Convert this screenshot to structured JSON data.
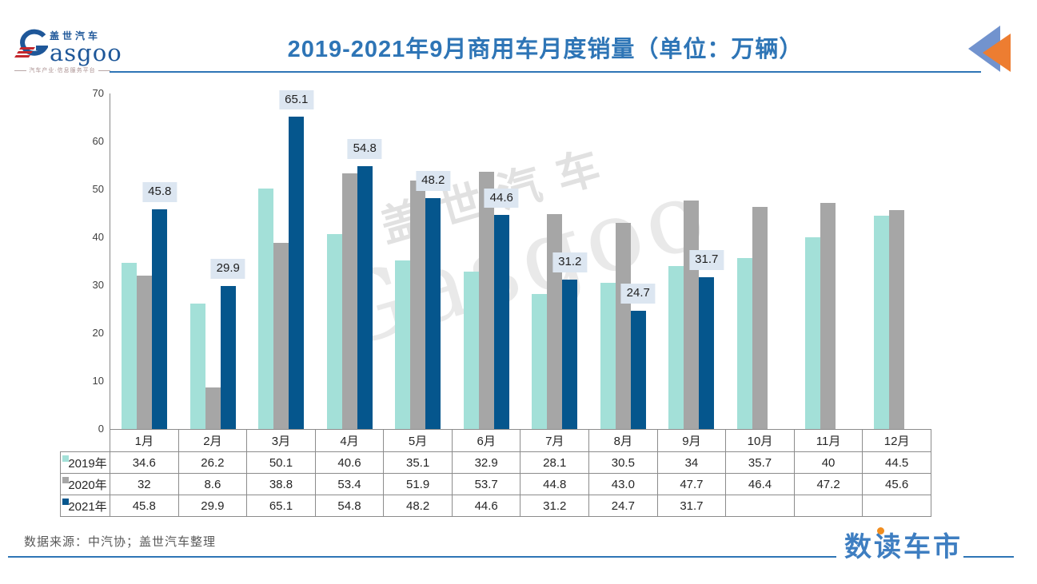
{
  "header": {
    "logo": {
      "brand_cn": "盖世汽车",
      "brand_en": "asgoo",
      "tagline": "汽车产业·信息服务平台"
    },
    "title": "2019-2021年9月商用车月度销量（单位：万辆）"
  },
  "chart_data": {
    "type": "bar",
    "title": "2019-2021年9月商用车月度销量（单位：万辆）",
    "unit": "万辆",
    "categories": [
      "1月",
      "2月",
      "3月",
      "4月",
      "5月",
      "6月",
      "7月",
      "8月",
      "9月",
      "10月",
      "11月",
      "12月"
    ],
    "series": [
      {
        "name": "2019年",
        "color": "#A3E0D8",
        "values": [
          34.6,
          26.2,
          50.1,
          40.6,
          35.1,
          32.9,
          28.1,
          30.5,
          34,
          35.7,
          40,
          44.5
        ]
      },
      {
        "name": "2020年",
        "color": "#A6A6A6",
        "values": [
          32,
          8.6,
          38.8,
          53.4,
          51.9,
          53.7,
          44.8,
          43.0,
          47.7,
          46.4,
          47.2,
          45.6
        ]
      },
      {
        "name": "2021年",
        "color": "#05568D",
        "show_data_labels": true,
        "values": [
          45.8,
          29.9,
          65.1,
          54.8,
          48.2,
          44.6,
          31.2,
          24.7,
          31.7,
          null,
          null,
          null
        ]
      }
    ],
    "data_labels_2021": [
      "45.8",
      "29.9",
      "65.1",
      "54.8",
      "48.2",
      "44.6",
      "31.2",
      "24.7",
      "31.7"
    ],
    "ylim": [
      0,
      70
    ],
    "yticks": [
      0,
      10,
      20,
      30,
      40,
      50,
      60,
      70
    ],
    "grid": false,
    "legend_position": "data-table-row-headers",
    "data_label_bg": "#DCE6F1"
  },
  "table": {
    "columns": [
      "1月",
      "2月",
      "3月",
      "4月",
      "5月",
      "6月",
      "7月",
      "8月",
      "9月",
      "10月",
      "11月",
      "12月"
    ],
    "rows": [
      {
        "label": "2019年",
        "key_color": "#A3E0D8",
        "cells": [
          "34.6",
          "26.2",
          "50.1",
          "40.6",
          "35.1",
          "32.9",
          "28.1",
          "30.5",
          "34",
          "35.7",
          "40",
          "44.5"
        ]
      },
      {
        "label": "2020年",
        "key_color": "#A6A6A6",
        "cells": [
          "32",
          "8.6",
          "38.8",
          "53.4",
          "51.9",
          "53.7",
          "44.8",
          "43.0",
          "47.7",
          "46.4",
          "47.2",
          "45.6"
        ]
      },
      {
        "label": "2021年",
        "key_color": "#05568D",
        "cells": [
          "45.8",
          "29.9",
          "65.1",
          "54.8",
          "48.2",
          "44.6",
          "31.2",
          "24.7",
          "31.7",
          "",
          "",
          ""
        ]
      }
    ]
  },
  "watermark": {
    "line1": "盖世汽车",
    "line2": "Gasgoo"
  },
  "footer": {
    "source": "数据来源：中汽协；盖世汽车整理",
    "brand": "数读车市"
  },
  "colors": {
    "accent_blue": "#2E75B6",
    "triangle_blue": "#7293CE",
    "triangle_orange": "#ED7D31",
    "logo_blue": "#1E5799",
    "logo_red": "#C4282D",
    "footer_brand_blue": "#3E7EC1",
    "footer_dot_orange": "#F18D1E",
    "table_border": "#8C8C8C"
  }
}
